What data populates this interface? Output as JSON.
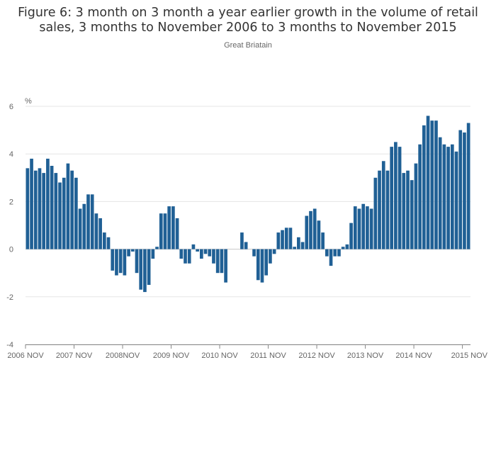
{
  "header": {
    "title_line1": "Figure 6: 3 month on 3 month a year earlier growth in the volume of retail",
    "title_line2": "sales, 3 months to November 2006 to 3 months to November 2015",
    "subtitle": "Great Briatain"
  },
  "colors": {
    "bar": "#206095",
    "grid": "#e5e5e5",
    "axis": "#888888",
    "text": "#666666"
  },
  "chart_data": {
    "type": "bar",
    "title": "Figure 6: 3 month on 3 month a year earlier growth in the volume of retail sales, 3 months to November 2006 to 3 months to November 2015",
    "subtitle": "Great Briatain",
    "ylabel": "%",
    "ylim": [
      -4,
      6
    ],
    "yticks": [
      -4,
      -2,
      0,
      2,
      4,
      6
    ],
    "grid": true,
    "x_start": "2006 NOV",
    "x_end": "2015 NOV",
    "xtick_labels": [
      "2006 NOV",
      "2007 NOV",
      "2008NOV",
      "2009 NOV",
      "2010 NOV",
      "2011 NOV",
      "2012 NOV",
      "2013 NOV",
      "2014 NOV",
      "2015 NOV"
    ],
    "series": [
      {
        "values": [
          3.4,
          3.8,
          3.3,
          3.4,
          3.2,
          3.8,
          3.5,
          3.2,
          2.8,
          3.0,
          3.6,
          3.3,
          3.0,
          1.7,
          1.9,
          2.3,
          2.3,
          1.5,
          1.3,
          0.7,
          0.5,
          -0.9,
          -1.1,
          -1.0,
          -1.1,
          -0.3,
          -0.1,
          -1.0,
          -1.7,
          -1.8,
          -1.5,
          -0.4,
          0.1,
          1.5,
          1.5,
          1.8,
          1.8,
          1.3,
          -0.4,
          -0.6,
          -0.6,
          0.2,
          -0.1,
          -0.4,
          -0.2,
          -0.3,
          -0.6,
          -1.0,
          -1.0,
          -1.4,
          0.0,
          0.0,
          0.0,
          0.7,
          0.3,
          0.0,
          -0.3,
          -1.3,
          -1.4,
          -1.1,
          -0.6,
          -0.2,
          0.7,
          0.8,
          0.9,
          0.9,
          0.1,
          0.5,
          0.3,
          1.4,
          1.6,
          1.7,
          1.2,
          0.7,
          -0.3,
          -0.7,
          -0.3,
          -0.3,
          0.1,
          0.2,
          1.1,
          1.8,
          1.7,
          1.9,
          1.8,
          1.7,
          3.0,
          3.3,
          3.7,
          3.3,
          4.3,
          4.5,
          4.3,
          3.2,
          3.3,
          2.9,
          3.6,
          4.4,
          5.2,
          5.6,
          5.4,
          5.4,
          4.7,
          4.4,
          4.3,
          4.4,
          4.1,
          5.0,
          4.9,
          5.3
        ]
      }
    ]
  }
}
